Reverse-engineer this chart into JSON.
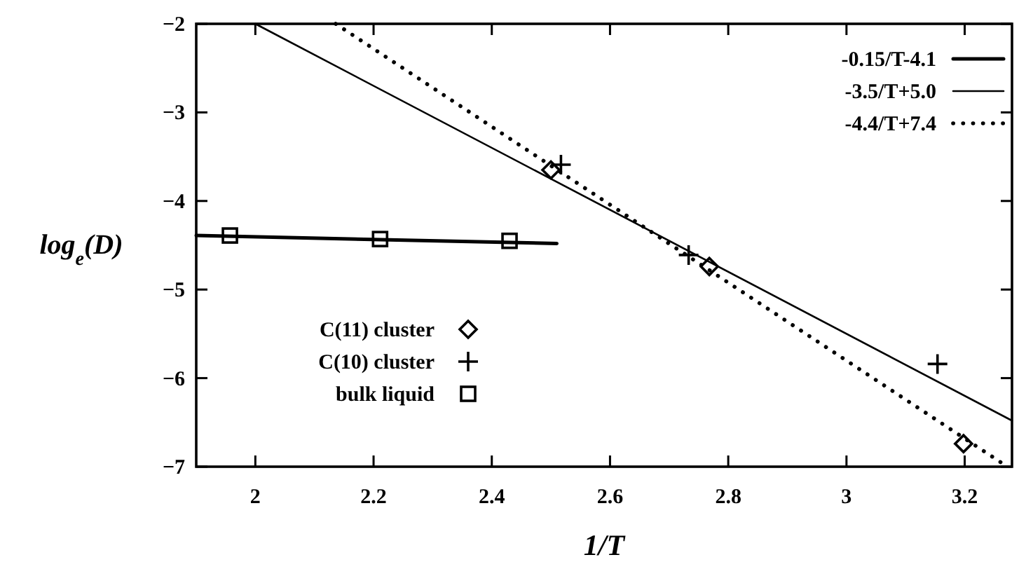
{
  "chart_data": {
    "type": "scatter",
    "xlabel": "1/T",
    "ylabel": "log$_{e}$(D)",
    "xlim": [
      1.9,
      3.28
    ],
    "ylim": [
      -7,
      -2
    ],
    "xticks": [
      2,
      2.2,
      2.4,
      2.6,
      2.8,
      3,
      3.2
    ],
    "yticks": [
      -7,
      -6,
      -5,
      -4,
      -3,
      -2
    ],
    "legend": "top right",
    "grid": false,
    "series": [
      {
        "name": "-0.15/T-4.1",
        "type": "line",
        "color": "#000000",
        "line_style": "solid",
        "marker": "none",
        "x": [
          1.9,
          2.51
        ],
        "values": [
          -4.39,
          -4.48
        ]
      },
      {
        "name": "-3.5/T+5.0",
        "type": "line",
        "color": "#000000",
        "line_style": "solid",
        "marker": "none",
        "x": [
          2.0,
          3.28
        ],
        "values": [
          -2.0,
          -6.48
        ]
      },
      {
        "name": "-4.4/T+7.4",
        "type": "line",
        "color": "#000000",
        "line_style": "dotted",
        "marker": "none",
        "x": [
          2.136,
          3.27
        ],
        "values": [
          -2.0,
          -6.99
        ]
      },
      {
        "name": "C(11) cluster",
        "color": "#000000",
        "marker": "diamond",
        "x": [
          2.5,
          2.768,
          3.198
        ],
        "values": [
          -3.65,
          -4.74,
          -6.74
        ]
      },
      {
        "name": "C(10) cluster",
        "color": "#000000",
        "marker": "cross",
        "x": [
          2.517,
          2.733,
          3.154
        ],
        "values": [
          -3.59,
          -4.61,
          -5.84
        ]
      },
      {
        "name": "bulk liquid",
        "color": "#000000",
        "marker": "square",
        "x": [
          1.957,
          2.211,
          2.43
        ],
        "values": [
          -4.39,
          -4.43,
          -4.45
        ]
      }
    ]
  }
}
